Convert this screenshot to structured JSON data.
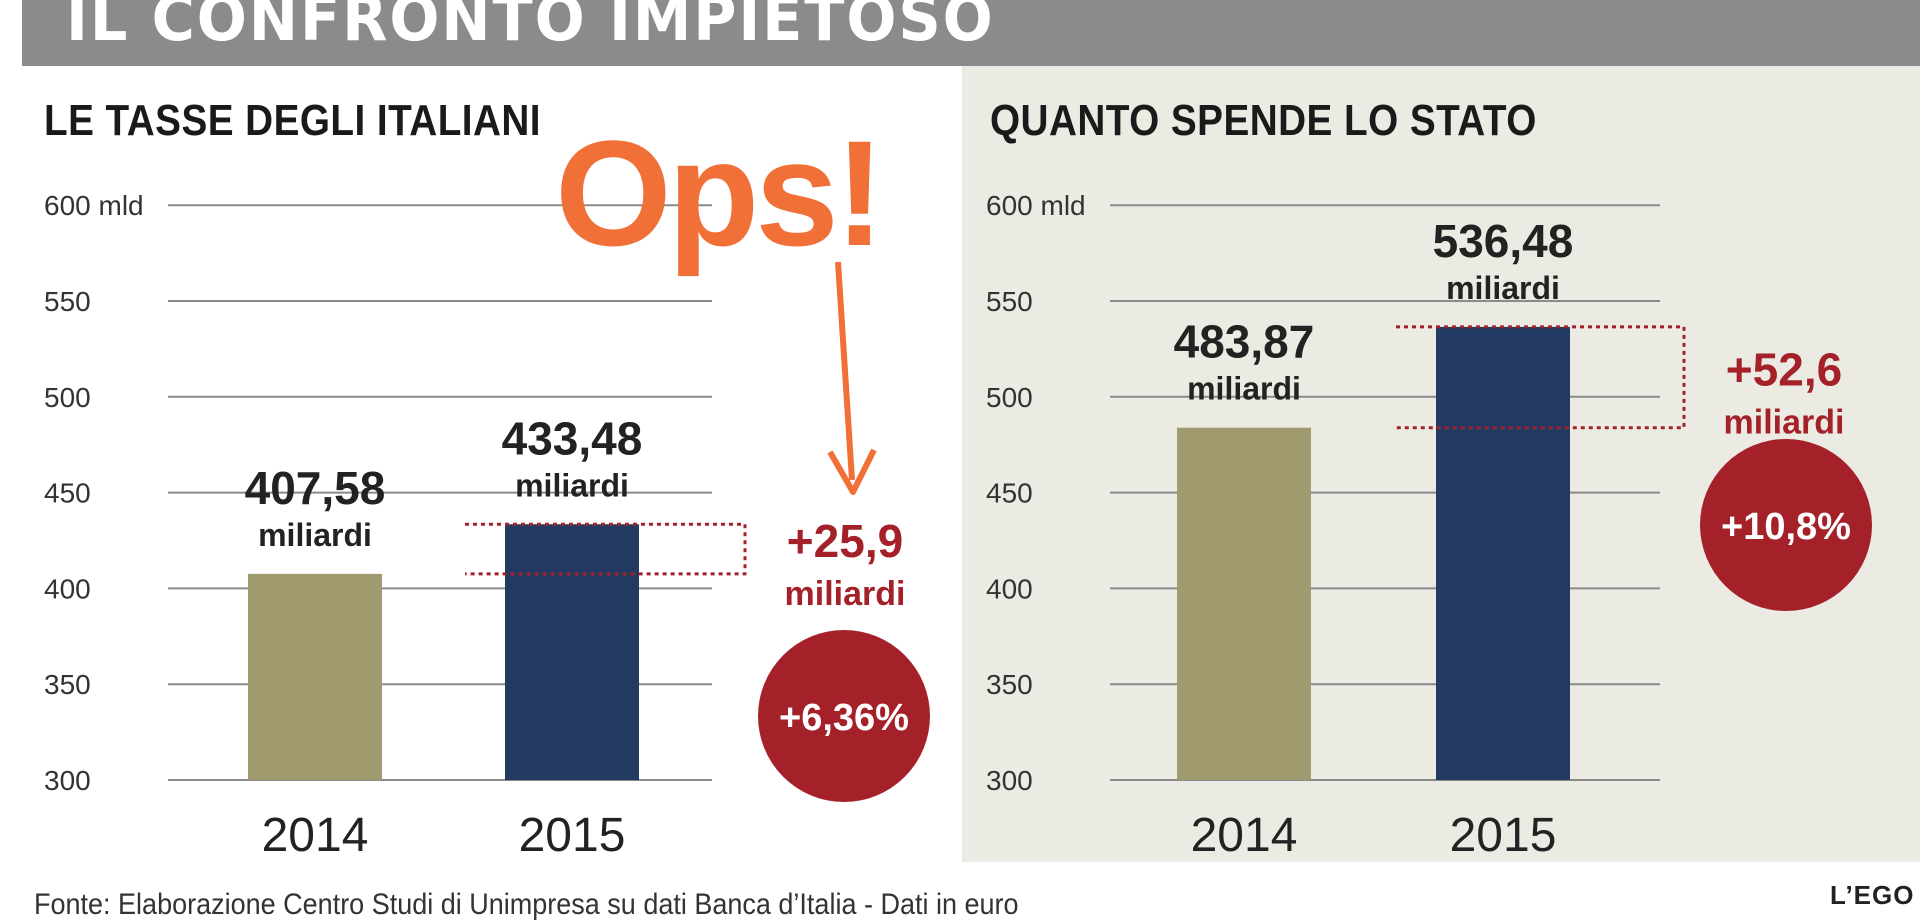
{
  "header": {
    "title": "IL CONFRONTO IMPIETOSO"
  },
  "overlay": {
    "text": "Ops!"
  },
  "footer": {
    "source": "Fonte: Elaborazione Centro Studi di Unimpresa su dati Banca d’Italia - Dati in euro",
    "logo": "L’EGO"
  },
  "colors": {
    "bar_2014": "#a09a6f",
    "bar_2015": "#233a63",
    "accent_red": "#a5212a",
    "overlay_orange": "#f07038",
    "right_panel_bg": "#ecebe3"
  },
  "chart_data": [
    {
      "type": "bar",
      "title": "LE TASSE DEGLI ITALIANI",
      "categories": [
        "2014",
        "2015"
      ],
      "values": [
        407.58,
        433.48
      ],
      "unit": "miliardi",
      "ylim": [
        300,
        600
      ],
      "y_ticks": [
        "300",
        "350",
        "400",
        "450",
        "500",
        "550",
        "600 mld"
      ],
      "data_labels": [
        "407,58",
        "433,48"
      ],
      "grid": true,
      "difference": {
        "value": "+25,9",
        "unit": "miliardi",
        "percent": "+6,36%"
      }
    },
    {
      "type": "bar",
      "title": "QUANTO SPENDE LO STATO",
      "categories": [
        "2014",
        "2015"
      ],
      "values": [
        483.87,
        536.48
      ],
      "unit": "miliardi",
      "ylim": [
        300,
        600
      ],
      "y_ticks": [
        "300",
        "350",
        "400",
        "450",
        "500",
        "550",
        "600 mld"
      ],
      "data_labels": [
        "483,87",
        "536,48"
      ],
      "grid": true,
      "difference": {
        "value": "+52,6",
        "unit": "miliardi",
        "percent": "+10,8%"
      }
    }
  ]
}
